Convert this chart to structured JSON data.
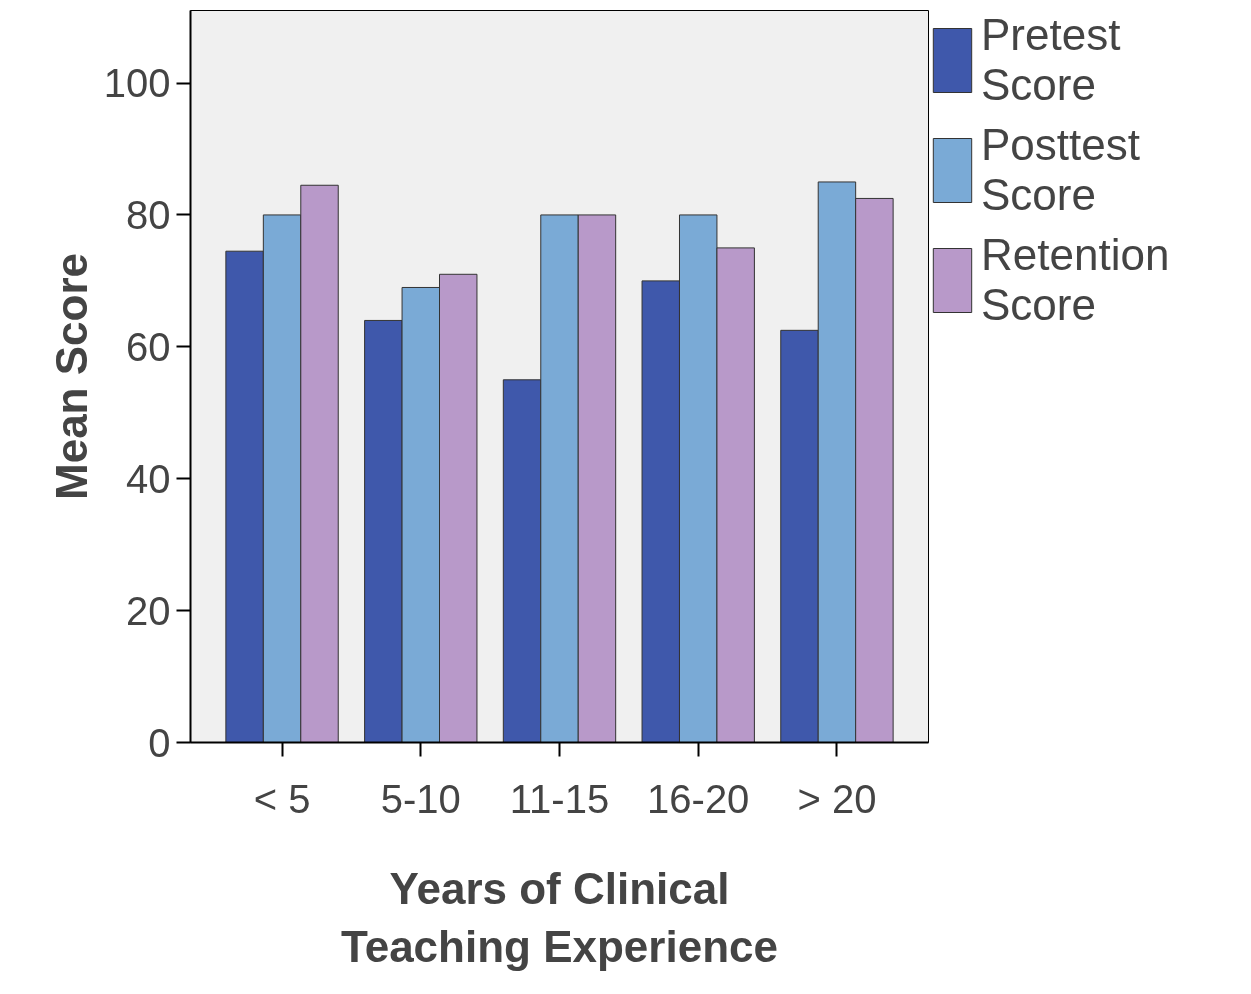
{
  "chart_data": {
    "type": "bar",
    "xlabel": "Years of Clinical Teaching Experience",
    "ylabel": "Mean Score",
    "categories": [
      "< 5",
      "5-10",
      "11-15",
      "16-20",
      "> 20"
    ],
    "series": [
      {
        "name": "Pretest Score",
        "color": "#3f58ab",
        "values": [
          74.5,
          64,
          55,
          70,
          62.5
        ]
      },
      {
        "name": "Posttest Score",
        "color": "#7aaad6",
        "values": [
          80,
          69,
          80,
          80,
          85
        ]
      },
      {
        "name": "Retention Score",
        "color": "#b899c9",
        "values": [
          84.5,
          71,
          80,
          75,
          82.5
        ]
      }
    ],
    "ylim": [
      0,
      111
    ],
    "yticks": [
      0,
      20,
      40,
      60,
      80,
      100
    ],
    "grid": false,
    "legend": "right"
  }
}
